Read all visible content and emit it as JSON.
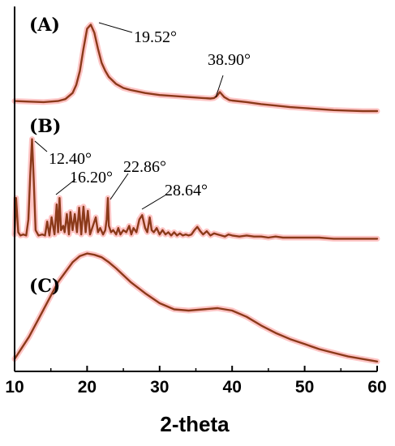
{
  "chart_data": {
    "type": "line",
    "xlabel": "2-theta",
    "ylabel": "",
    "xlim": [
      10,
      60
    ],
    "xticks": [
      10,
      20,
      30,
      40,
      50,
      60
    ],
    "grid": false,
    "line_color": "#8b3a1a",
    "glow_color": "#ff5a5a",
    "panels": [
      {
        "label": "(A)",
        "ylim": [
          0,
          100
        ],
        "peaks": [
          "19.52°",
          "38.90°"
        ],
        "x": [
          10,
          12,
          14,
          16,
          17,
          18,
          18.5,
          19,
          19.5,
          20,
          20.5,
          21,
          21.5,
          22,
          22.5,
          23,
          24,
          25,
          26,
          28,
          30,
          32,
          34,
          36,
          37,
          37.5,
          37.9,
          38.3,
          38.9,
          39.6,
          40,
          42,
          44,
          46,
          48,
          50,
          52,
          54,
          56,
          58,
          60
        ],
        "y": [
          14,
          13.5,
          13,
          14,
          16,
          22,
          30,
          44,
          66,
          86,
          90,
          82,
          66,
          52,
          44,
          38,
          31,
          27,
          25,
          22,
          20,
          19,
          18,
          17,
          16.5,
          17,
          19,
          23,
          18,
          15,
          14.5,
          13,
          11,
          9.5,
          8,
          7,
          6,
          5,
          4.5,
          4,
          4
        ]
      },
      {
        "label": "(B)",
        "ylim": [
          0,
          100
        ],
        "peaks": [
          "12.40°",
          "16.20°",
          "22.86°",
          "28.64°"
        ],
        "x": [
          10,
          10.2,
          10.5,
          10.8,
          11.2,
          11.6,
          11.9,
          12.15,
          12.4,
          12.65,
          12.9,
          13.3,
          13.8,
          14.2,
          14.5,
          14.8,
          15.1,
          15.5,
          15.8,
          16,
          16.2,
          16.4,
          16.7,
          16.9,
          17.2,
          17.5,
          17.7,
          18,
          18.3,
          18.6,
          18.9,
          19.2,
          19.5,
          19.8,
          20.1,
          20.4,
          20.8,
          21.2,
          21.5,
          21.8,
          22.2,
          22.5,
          22.7,
          22.86,
          23,
          23.3,
          23.6,
          24,
          24.3,
          24.6,
          25,
          25.4,
          25.8,
          26.1,
          26.4,
          26.8,
          27.2,
          27.6,
          28,
          28.3,
          28.64,
          28.9,
          29.2,
          29.6,
          30,
          30.4,
          30.8,
          31.2,
          31.6,
          32,
          32.4,
          32.8,
          33.2,
          33.6,
          34,
          34.4,
          34.8,
          35.2,
          35.6,
          36,
          36.5,
          37,
          37.5,
          38,
          38.5,
          39,
          39.5,
          40,
          41,
          42,
          43,
          44,
          45,
          46,
          47,
          48,
          50,
          52,
          54,
          56,
          58,
          60
        ],
        "y": [
          6,
          40,
          8,
          5,
          6,
          5,
          20,
          60,
          95,
          55,
          10,
          5,
          6,
          5,
          18,
          5,
          22,
          6,
          34,
          8,
          40,
          10,
          14,
          8,
          25,
          6,
          27,
          10,
          25,
          8,
          31,
          6,
          32,
          8,
          28,
          6,
          14,
          22,
          8,
          12,
          6,
          10,
          20,
          40,
          14,
          8,
          10,
          6,
          12,
          6,
          10,
          8,
          14,
          6,
          12,
          8,
          20,
          24,
          12,
          8,
          22,
          10,
          8,
          12,
          6,
          10,
          6,
          8,
          5,
          8,
          5,
          7,
          5,
          6,
          5,
          6,
          10,
          13,
          9,
          6,
          9,
          5,
          7,
          6,
          5,
          4,
          6,
          5,
          4,
          5,
          4,
          4,
          3,
          4,
          3,
          3,
          3,
          3,
          2,
          2,
          2,
          2
        ]
      },
      {
        "label": "(C)",
        "ylim": [
          0,
          100
        ],
        "peaks": [],
        "x": [
          10,
          12,
          14,
          16,
          18,
          19,
          20,
          21,
          22,
          23,
          24,
          26,
          28,
          30,
          32,
          34,
          36,
          38,
          40,
          42,
          44,
          46,
          48,
          50,
          52,
          54,
          56,
          58,
          60
        ],
        "y": [
          10,
          28,
          50,
          72,
          88,
          93,
          95,
          94,
          92,
          88,
          83,
          72,
          63,
          55,
          50,
          49,
          50,
          51,
          49,
          44,
          37,
          31,
          26,
          22,
          18,
          15,
          12,
          10,
          8
        ]
      }
    ]
  }
}
